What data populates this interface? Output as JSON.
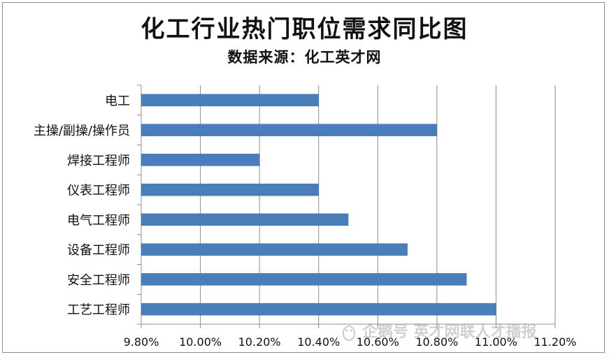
{
  "chart_data": {
    "type": "bar",
    "orientation": "horizontal",
    "title": "化工行业热门职位需求同比图",
    "subtitle": "数据来源：化工英才网",
    "categories": [
      "电工",
      "主操/副操/操作员",
      "焊接工程师",
      "仪表工程师",
      "电气工程师",
      "设备工程师",
      "安全工程师",
      "工艺工程师"
    ],
    "values": [
      10.4,
      10.8,
      10.2,
      10.4,
      10.5,
      10.7,
      10.9,
      11.0
    ],
    "xlim": [
      9.8,
      11.2
    ],
    "xticks": [
      "9.80%",
      "10.00%",
      "10.20%",
      "10.40%",
      "10.60%",
      "10.80%",
      "11.00%",
      "11.20%"
    ],
    "grid": true,
    "bar_color": "#4a7ebb"
  },
  "watermark": {
    "text": "企鹅号 英才网联人才播报"
  }
}
